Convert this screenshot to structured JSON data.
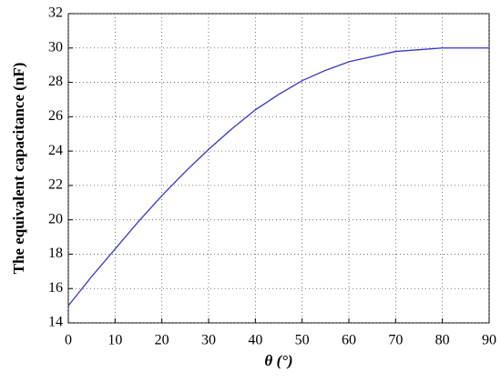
{
  "chart_data": {
    "type": "line",
    "xlabel": "θ (°)",
    "ylabel": "The equivalent capacitance (nF)",
    "x": [
      0,
      5,
      10,
      15,
      20,
      25,
      30,
      35,
      40,
      45,
      50,
      55,
      60,
      65,
      70,
      75,
      80,
      85,
      90
    ],
    "series": [
      {
        "name": "capacitance",
        "color": "#3636c8",
        "values": [
          15,
          16.7,
          18.3,
          19.9,
          21.4,
          22.8,
          24.1,
          25.3,
          26.4,
          27.3,
          28.1,
          28.7,
          29.2,
          29.5,
          29.8,
          29.9,
          30,
          30,
          30
        ]
      }
    ],
    "xlim": [
      0,
      90
    ],
    "xticks": [
      0,
      10,
      20,
      30,
      40,
      50,
      60,
      70,
      80,
      90
    ],
    "ylim": [
      14,
      32
    ],
    "yticks": [
      14,
      16,
      18,
      20,
      22,
      24,
      26,
      28,
      30,
      32
    ],
    "grid": true
  }
}
